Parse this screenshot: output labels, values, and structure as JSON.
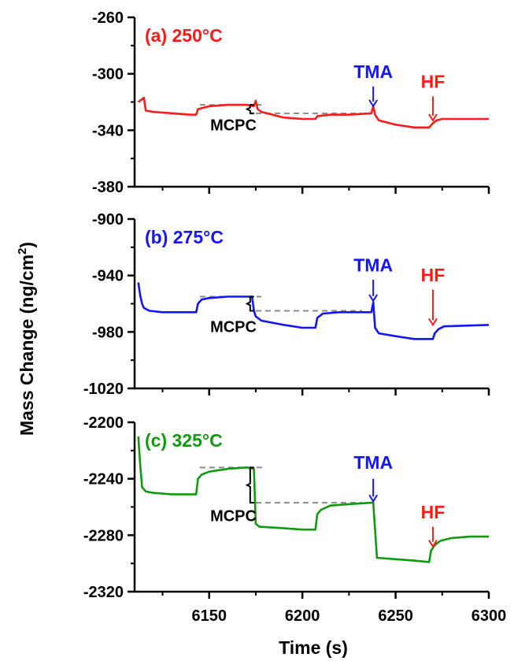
{
  "figure": {
    "ylabel_main": "Mass Change (ng/cm",
    "ylabel_sup": "2",
    "ylabel_end": ")",
    "xlabel": "Time (s)"
  },
  "colors": {
    "red": "#ff1a1a",
    "blue": "#1414ff",
    "green": "#109a10",
    "dash": "#8a8a8a",
    "axis": "#000000"
  },
  "chart_data": [
    {
      "type": "line",
      "panel_label": "(a) 250°C",
      "color": "#ff1a1a",
      "xlim": [
        6110,
        6300
      ],
      "ylim": [
        -380,
        -260
      ],
      "yticks": [
        "-260",
        "-300",
        "-340",
        "-380"
      ],
      "ytick_values": [
        -260,
        -300,
        -340,
        -380
      ],
      "xticks": [
        6150,
        6200,
        6250,
        6300
      ],
      "series": [
        {
          "x": [
            6112,
            6114,
            6115,
            6116,
            6120,
            6130,
            6140,
            6143,
            6144,
            6150,
            6160,
            6170,
            6174,
            6175,
            6176,
            6178,
            6190,
            6200,
            6207,
            6208,
            6215,
            6225,
            6237,
            6238,
            6239,
            6241,
            6250,
            6260,
            6268,
            6270,
            6272,
            6275,
            6300
          ],
          "y": [
            -320,
            -318,
            -317,
            -326,
            -327,
            -328,
            -329,
            -329,
            -325,
            -323,
            -322,
            -322,
            -323,
            -319,
            -325,
            -327,
            -331,
            -332,
            -332,
            -330,
            -329,
            -329,
            -328,
            -323,
            -329,
            -333,
            -336,
            -338,
            -338,
            -335,
            -333,
            -332,
            -332
          ]
        }
      ],
      "dashed_lines": [
        {
          "x": [
            6145,
            6178
          ],
          "y": [
            -322,
            -322
          ]
        },
        {
          "x": [
            6175,
            6232
          ],
          "y": [
            -328,
            -328
          ]
        }
      ],
      "annotations": [
        {
          "text": "TMA",
          "x": 6238,
          "y": -303,
          "color": "#1414ff",
          "arrow_from": -309,
          "arrow_to": -323
        },
        {
          "text": "HF",
          "x": 6270,
          "y": -310,
          "color": "#ff1a1a",
          "arrow_from": -316,
          "arrow_to": -333
        },
        {
          "text": "MCPC",
          "x": 6163,
          "y": -340,
          "color": "#000000",
          "brace_x": 6172,
          "brace_y": [
            -322,
            -328
          ]
        }
      ]
    },
    {
      "type": "line",
      "panel_label": "(b) 275°C",
      "color": "#1414ff",
      "xlim": [
        6110,
        6300
      ],
      "ylim": [
        -1020,
        -900
      ],
      "yticks": [
        "-900",
        "-940",
        "-980",
        "-1020"
      ],
      "ytick_values": [
        -900,
        -940,
        -980,
        -1020
      ],
      "xticks": [
        6150,
        6200,
        6250,
        6300
      ],
      "series": [
        {
          "x": [
            6112,
            6113,
            6114,
            6115,
            6118,
            6125,
            6135,
            6143,
            6144,
            6146,
            6150,
            6160,
            6170,
            6173,
            6174,
            6175,
            6178,
            6190,
            6200,
            6207,
            6208,
            6211,
            6220,
            6230,
            6237,
            6238,
            6239,
            6241,
            6250,
            6260,
            6270,
            6271,
            6273,
            6276,
            6300
          ],
          "y": [
            -945,
            -954,
            -960,
            -963,
            -965,
            -966,
            -966,
            -966,
            -960,
            -957,
            -956,
            -955,
            -955,
            -955,
            -965,
            -969,
            -972,
            -975,
            -977,
            -977,
            -970,
            -967,
            -966,
            -966,
            -966,
            -959,
            -977,
            -981,
            -983,
            -985,
            -985,
            -981,
            -978,
            -976,
            -975
          ]
        }
      ],
      "dashed_lines": [
        {
          "x": [
            6145,
            6178
          ],
          "y": [
            -955,
            -955
          ]
        },
        {
          "x": [
            6175,
            6232
          ],
          "y": [
            -965,
            -965
          ]
        }
      ],
      "annotations": [
        {
          "text": "TMA",
          "x": 6238,
          "y": -937,
          "color": "#1414ff",
          "arrow_from": -943,
          "arrow_to": -958
        },
        {
          "text": "HF",
          "x": 6270,
          "y": -944,
          "color": "#ff1a1a",
          "arrow_from": -950,
          "arrow_to": -975
        },
        {
          "text": "MCPC",
          "x": 6163,
          "y": -980,
          "color": "#000000",
          "brace_x": 6172,
          "brace_y": [
            -955,
            -965
          ]
        }
      ]
    },
    {
      "type": "line",
      "panel_label": "(c) 325°C",
      "color": "#109a10",
      "xlim": [
        6110,
        6300
      ],
      "ylim": [
        -2320,
        -2200
      ],
      "yticks": [
        "-2200",
        "-2240",
        "-2280",
        "-2320"
      ],
      "ytick_values": [
        -2200,
        -2240,
        -2280,
        -2320
      ],
      "xticks": [
        6150,
        6200,
        6250,
        6300
      ],
      "series": [
        {
          "x": [
            6112,
            6113,
            6114,
            6116,
            6120,
            6130,
            6143,
            6144,
            6146,
            6150,
            6160,
            6170,
            6174,
            6175,
            6177,
            6190,
            6200,
            6207,
            6208,
            6210,
            6215,
            6225,
            6237,
            6238,
            6240,
            6250,
            6260,
            6268,
            6269,
            6271,
            6274,
            6280,
            6290,
            6300
          ],
          "y": [
            -2210,
            -2230,
            -2246,
            -2249,
            -2250,
            -2251,
            -2251,
            -2240,
            -2237,
            -2235,
            -2233,
            -2232,
            -2233,
            -2272,
            -2274,
            -2275,
            -2276,
            -2276,
            -2265,
            -2262,
            -2259,
            -2258,
            -2257,
            -2257,
            -2296,
            -2297,
            -2298,
            -2299,
            -2291,
            -2287,
            -2284,
            -2282,
            -2281,
            -2281
          ]
        }
      ],
      "dashed_lines": [
        {
          "x": [
            6145,
            6180
          ],
          "y": [
            -2232,
            -2232
          ]
        },
        {
          "x": [
            6175,
            6232
          ],
          "y": [
            -2257,
            -2257
          ]
        }
      ],
      "annotations": [
        {
          "text": "TMA",
          "x": 6238,
          "y": -2233,
          "color": "#1414ff",
          "arrow_from": -2240,
          "arrow_to": -2256
        },
        {
          "text": "HF",
          "x": 6270,
          "y": -2268,
          "color": "#ff1a1a",
          "arrow_from": -2274,
          "arrow_to": -2288
        },
        {
          "text": "MCPC",
          "x": 6163,
          "y": -2270,
          "color": "#000000",
          "brace_x": 6172,
          "brace_y": [
            -2232,
            -2257
          ]
        }
      ]
    }
  ]
}
